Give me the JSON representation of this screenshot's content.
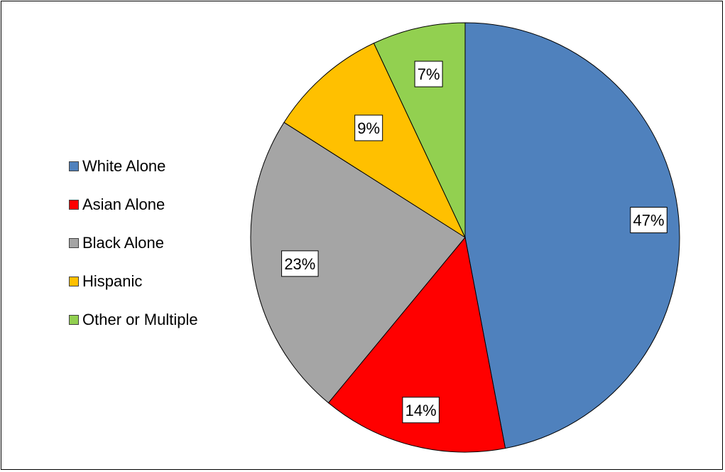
{
  "chart_data": {
    "type": "pie",
    "title": "",
    "categories": [
      "White Alone",
      "Asian Alone",
      "Black Alone",
      "Hispanic",
      "Other or Multiple"
    ],
    "values": [
      47,
      14,
      23,
      9,
      7
    ],
    "data_labels": [
      "47%",
      "14%",
      "23%",
      "9%",
      "7%"
    ],
    "colors": [
      "#4F81BD",
      "#FF0000",
      "#A5A5A5",
      "#FFC000",
      "#92D050"
    ],
    "start_angle": "12 o'clock",
    "direction": "clockwise",
    "legend": {
      "placement": "left",
      "entries": [
        "White Alone",
        "Asian Alone",
        "Black Alone",
        "Hispanic",
        "Other or Multiple"
      ]
    }
  }
}
